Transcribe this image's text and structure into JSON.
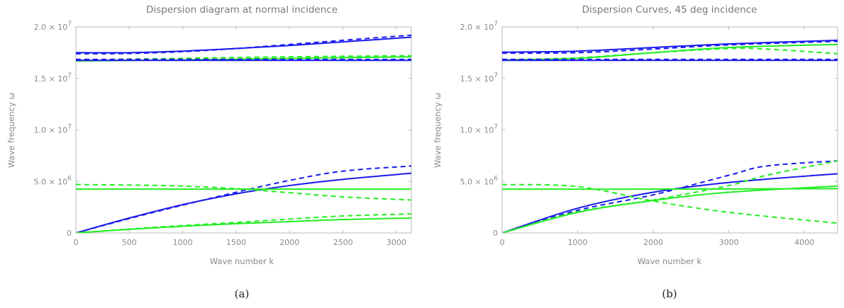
{
  "colors": {
    "blue": "#1a1aee",
    "green": "#22ee22"
  },
  "chart_data": [
    {
      "type": "line",
      "caption": "(a)",
      "title": "Dispersion diagram at normal incidence",
      "xlabel": "Wave number k",
      "ylabel": "Wave frequency ω",
      "xlim": [
        0,
        3140
      ],
      "ylim": [
        0,
        20000000
      ],
      "xticks": [
        0,
        500,
        1000,
        1500,
        2000,
        2500,
        3000
      ],
      "xtick_labels": [
        "0",
        "500",
        "1000",
        "1500",
        "2000",
        "2500",
        "3000"
      ],
      "yticks": [
        0,
        5000000,
        10000000,
        15000000,
        20000000
      ],
      "ytick_labels": [
        {
          "mant": "0",
          "exp": ""
        },
        {
          "mant": "5.0 × 10",
          "exp": "6"
        },
        {
          "mant": "1.0 × 10",
          "exp": "7"
        },
        {
          "mant": "1.5 × 10",
          "exp": "7"
        },
        {
          "mant": "2.0 × 10",
          "exp": "7"
        }
      ],
      "series": [
        {
          "color": "blue",
          "style": "solid",
          "x": [
            0,
            500,
            1000,
            1500,
            2000,
            2500,
            3140
          ],
          "y": [
            17500000,
            17500000,
            17650000,
            17900000,
            18200000,
            18550000,
            19000000
          ]
        },
        {
          "color": "blue",
          "style": "dashed",
          "x": [
            0,
            500,
            1000,
            1500,
            2000,
            2500,
            3140
          ],
          "y": [
            17400000,
            17420000,
            17600000,
            17900000,
            18300000,
            18700000,
            19200000
          ]
        },
        {
          "color": "green",
          "style": "solid",
          "x": [
            0,
            1000,
            2000,
            3140
          ],
          "y": [
            16700000,
            16800000,
            16950000,
            17100000
          ]
        },
        {
          "color": "green",
          "style": "dashed",
          "x": [
            0,
            1000,
            2000,
            3140
          ],
          "y": [
            16800000,
            16950000,
            17100000,
            17200000
          ]
        },
        {
          "color": "blue",
          "style": "solid",
          "x": [
            0,
            3140
          ],
          "y": [
            16750000,
            16750000
          ]
        },
        {
          "color": "blue",
          "style": "dashed",
          "x": [
            0,
            3140
          ],
          "y": [
            16850000,
            16850000
          ]
        },
        {
          "color": "blue",
          "style": "solid",
          "x": [
            0,
            500,
            1000,
            1500,
            2000,
            2500,
            3140
          ],
          "y": [
            0,
            1450000,
            2750000,
            3800000,
            4600000,
            5200000,
            5800000
          ]
        },
        {
          "color": "blue",
          "style": "dashed",
          "x": [
            0,
            500,
            1000,
            1500,
            2000,
            2500,
            3140
          ],
          "y": [
            0,
            1400000,
            2700000,
            3950000,
            5100000,
            6000000,
            6500000
          ]
        },
        {
          "color": "green",
          "style": "solid",
          "x": [
            0,
            3140
          ],
          "y": [
            4250000,
            4250000
          ]
        },
        {
          "color": "green",
          "style": "dashed",
          "x": [
            0,
            500,
            1000,
            1500,
            2000,
            2500,
            3140
          ],
          "y": [
            4700000,
            4650000,
            4550000,
            4300000,
            3900000,
            3500000,
            3200000
          ]
        },
        {
          "color": "green",
          "style": "solid",
          "x": [
            0,
            500,
            1000,
            1500,
            2000,
            2500,
            3140
          ],
          "y": [
            0,
            350000,
            650000,
            900000,
            1100000,
            1300000,
            1450000
          ]
        },
        {
          "color": "green",
          "style": "dashed",
          "x": [
            0,
            500,
            1000,
            1500,
            2000,
            2500,
            3140
          ],
          "y": [
            0,
            380000,
            720000,
            1020000,
            1350000,
            1650000,
            1850000
          ]
        }
      ]
    },
    {
      "type": "line",
      "caption": "(b)",
      "title": "Dispersion Curves, 45 deg incidence",
      "xlabel": "Wave number k",
      "ylabel": "Wave frequency ω",
      "xlim": [
        0,
        4440
      ],
      "ylim": [
        0,
        20000000
      ],
      "xticks": [
        0,
        1000,
        2000,
        3000,
        4000
      ],
      "xtick_labels": [
        "0",
        "1000",
        "2000",
        "3000",
        "4000"
      ],
      "yticks": [
        0,
        5000000,
        10000000,
        15000000,
        20000000
      ],
      "ytick_labels": [
        {
          "mant": "0",
          "exp": ""
        },
        {
          "mant": "5.0 × 10",
          "exp": "6"
        },
        {
          "mant": "1.0 × 10",
          "exp": "7"
        },
        {
          "mant": "1.5 × 10",
          "exp": "7"
        },
        {
          "mant": "2.0 × 10",
          "exp": "7"
        }
      ],
      "series": [
        {
          "color": "blue",
          "style": "solid",
          "x": [
            0,
            1000,
            2000,
            3000,
            4440
          ],
          "y": [
            17550000,
            17650000,
            18000000,
            18350000,
            18700000
          ]
        },
        {
          "color": "blue",
          "style": "dashed",
          "x": [
            0,
            1000,
            2000,
            3000,
            4440
          ],
          "y": [
            17450000,
            17500000,
            17850000,
            18250000,
            18600000
          ]
        },
        {
          "color": "green",
          "style": "solid",
          "x": [
            0,
            1000,
            2000,
            3000,
            4440
          ],
          "y": [
            16800000,
            16950000,
            17500000,
            18000000,
            18300000
          ]
        },
        {
          "color": "green",
          "style": "dashed",
          "x": [
            0,
            1000,
            2000,
            3000,
            3500,
            4440
          ],
          "y": [
            16800000,
            17000000,
            17500000,
            17900000,
            17850000,
            17400000
          ]
        },
        {
          "color": "blue",
          "style": "solid",
          "x": [
            0,
            4440
          ],
          "y": [
            16750000,
            16750000
          ]
        },
        {
          "color": "blue",
          "style": "dashed",
          "x": [
            0,
            4440
          ],
          "y": [
            16850000,
            16850000
          ]
        },
        {
          "color": "blue",
          "style": "solid",
          "x": [
            0,
            1000,
            2000,
            3000,
            4440
          ],
          "y": [
            0,
            2400000,
            3950000,
            4900000,
            5750000
          ]
        },
        {
          "color": "blue",
          "style": "dashed",
          "x": [
            0,
            1000,
            2000,
            3000,
            3500,
            4440
          ],
          "y": [
            0,
            2200000,
            3700000,
            5600000,
            6500000,
            7000000
          ]
        },
        {
          "color": "green",
          "style": "solid",
          "x": [
            0,
            2000,
            4440
          ],
          "y": [
            4250000,
            4250000,
            4300000
          ]
        },
        {
          "color": "green",
          "style": "dashed",
          "x": [
            0,
            1000,
            2000,
            3000,
            4440
          ],
          "y": [
            4700000,
            4500000,
            3100000,
            2000000,
            950000
          ]
        },
        {
          "color": "green",
          "style": "solid",
          "x": [
            0,
            1000,
            2000,
            3000,
            4440
          ],
          "y": [
            0,
            2000000,
            3150000,
            3950000,
            4550000
          ]
        },
        {
          "color": "green",
          "style": "dashed",
          "x": [
            0,
            1000,
            2000,
            3000,
            3500,
            4440
          ],
          "y": [
            0,
            2050000,
            3200000,
            4600000,
            5600000,
            7000000
          ]
        }
      ]
    }
  ]
}
